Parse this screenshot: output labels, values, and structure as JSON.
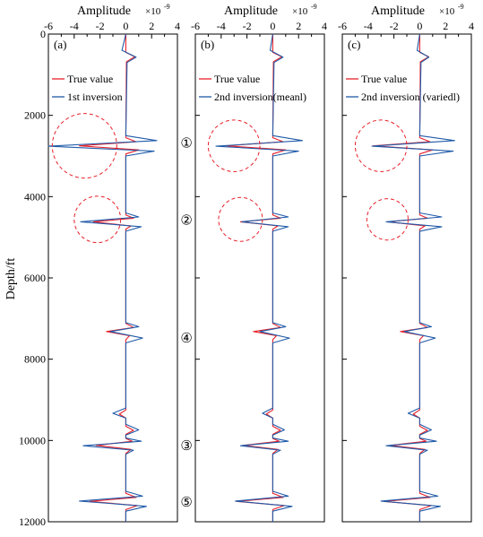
{
  "figure": {
    "ylabel": "Depth/ft",
    "xlabel": "Amplitude",
    "x_exponent_base": "×10",
    "x_exponent_power": "-9"
  },
  "colors": {
    "true_value": "#e8202a",
    "inversion": "#1f5aa8",
    "circle": "#e8202a"
  },
  "chart_data": [
    {
      "type": "line",
      "panel_label": "(a)",
      "xlim": [
        -6,
        4
      ],
      "ylim": [
        12000,
        0
      ],
      "x_ticks": [
        -6,
        -4,
        -2,
        0,
        2,
        4
      ],
      "y_ticks": [
        0,
        2000,
        4000,
        6000,
        8000,
        10000,
        12000
      ],
      "legend_position": "top-left",
      "series": [
        {
          "name": "True value",
          "points": [
            [
              0,
              0
            ],
            [
              0,
              450
            ],
            [
              0.7,
              560
            ],
            [
              0.05,
              680
            ],
            [
              0,
              2550
            ],
            [
              0.8,
              2650
            ],
            [
              -3.6,
              2750
            ],
            [
              1,
              2850
            ],
            [
              0,
              2950
            ],
            [
              0,
              4450
            ],
            [
              0.6,
              4530
            ],
            [
              -2.5,
              4620
            ],
            [
              0.4,
              4720
            ],
            [
              0,
              4800
            ],
            [
              0,
              7120
            ],
            [
              0.6,
              7220
            ],
            [
              -1.5,
              7320
            ],
            [
              0.3,
              7420
            ],
            [
              0,
              7520
            ],
            [
              0,
              9250
            ],
            [
              -0.5,
              9350
            ],
            [
              0,
              9450
            ],
            [
              0,
              9650
            ],
            [
              0.6,
              9750
            ],
            [
              0,
              9850
            ],
            [
              0,
              9950
            ],
            [
              0.5,
              10020
            ],
            [
              -2.3,
              10120
            ],
            [
              0.4,
              10220
            ],
            [
              0,
              10320
            ],
            [
              0,
              11300
            ],
            [
              0.8,
              11400
            ],
            [
              -2.8,
              11500
            ],
            [
              0.9,
              11600
            ],
            [
              0,
              11700
            ],
            [
              0,
              12000
            ]
          ]
        },
        {
          "name": "1st inversion",
          "points": [
            [
              0,
              0
            ],
            [
              -0.3,
              400
            ],
            [
              0.8,
              570
            ],
            [
              0.1,
              700
            ],
            [
              0,
              2500
            ],
            [
              2.4,
              2620
            ],
            [
              -6,
              2760
            ],
            [
              2.2,
              2880
            ],
            [
              0,
              3000
            ],
            [
              0,
              4400
            ],
            [
              1.0,
              4500
            ],
            [
              -3.5,
              4620
            ],
            [
              1.2,
              4740
            ],
            [
              0,
              4850
            ],
            [
              0,
              7100
            ],
            [
              1.0,
              7200
            ],
            [
              -1.2,
              7320
            ],
            [
              1.3,
              7480
            ],
            [
              0,
              7600
            ],
            [
              0,
              9200
            ],
            [
              -1.0,
              9330
            ],
            [
              0,
              9450
            ],
            [
              0,
              9600
            ],
            [
              1.0,
              9740
            ],
            [
              0,
              9870
            ],
            [
              0,
              9940
            ],
            [
              1.2,
              10020
            ],
            [
              -3.3,
              10130
            ],
            [
              0.6,
              10240
            ],
            [
              0,
              10340
            ],
            [
              0,
              11250
            ],
            [
              1.3,
              11370
            ],
            [
              -3.6,
              11490
            ],
            [
              1.6,
              11620
            ],
            [
              0,
              11740
            ],
            [
              0,
              12000
            ]
          ]
        }
      ],
      "circles": [
        {
          "x": -3.2,
          "y": 2750,
          "r": 2.5
        },
        {
          "x": -2.2,
          "y": 4560,
          "r": 1.8
        }
      ],
      "markers": [
        {
          "text": "①",
          "x": 4.7,
          "y": 2680
        },
        {
          "text": "②",
          "x": 4.7,
          "y": 4580
        },
        {
          "text": "④",
          "x": 4.7,
          "y": 7480
        },
        {
          "text": "③",
          "x": 4.7,
          "y": 10130
        },
        {
          "text": "⑤",
          "x": 4.7,
          "y": 11520
        }
      ]
    },
    {
      "type": "line",
      "panel_label": "(b)",
      "xlim": [
        -6,
        4
      ],
      "ylim": [
        12000,
        0
      ],
      "x_ticks": [
        -6,
        -4,
        -2,
        0,
        2,
        4
      ],
      "y_ticks": [
        0,
        2000,
        4000,
        6000,
        8000,
        10000,
        12000
      ],
      "legend_position": "top-left",
      "series": [
        {
          "name": "True value",
          "points": [
            [
              0,
              0
            ],
            [
              0,
              450
            ],
            [
              0.7,
              560
            ],
            [
              0.05,
              680
            ],
            [
              0,
              2550
            ],
            [
              0.8,
              2650
            ],
            [
              -3.6,
              2750
            ],
            [
              1,
              2850
            ],
            [
              0,
              2950
            ],
            [
              0,
              4450
            ],
            [
              0.6,
              4530
            ],
            [
              -2.5,
              4620
            ],
            [
              0.4,
              4720
            ],
            [
              0,
              4800
            ],
            [
              0,
              7120
            ],
            [
              0.6,
              7220
            ],
            [
              -1.5,
              7320
            ],
            [
              0.3,
              7420
            ],
            [
              0,
              7520
            ],
            [
              0,
              9250
            ],
            [
              -0.5,
              9350
            ],
            [
              0,
              9450
            ],
            [
              0,
              9650
            ],
            [
              0.6,
              9750
            ],
            [
              0,
              9850
            ],
            [
              0,
              9950
            ],
            [
              0.5,
              10020
            ],
            [
              -2.3,
              10120
            ],
            [
              0.4,
              10220
            ],
            [
              0,
              10320
            ],
            [
              0,
              11300
            ],
            [
              0.8,
              11400
            ],
            [
              -2.8,
              11500
            ],
            [
              0.9,
              11600
            ],
            [
              0,
              11700
            ],
            [
              0,
              12000
            ]
          ]
        },
        {
          "name": "2nd inversion(meanl)",
          "points": [
            [
              0,
              0
            ],
            [
              -0.2,
              400
            ],
            [
              0.8,
              570
            ],
            [
              0.1,
              700
            ],
            [
              0,
              2500
            ],
            [
              2.3,
              2620
            ],
            [
              -4.4,
              2760
            ],
            [
              2.0,
              2880
            ],
            [
              0,
              3000
            ],
            [
              0,
              4400
            ],
            [
              1.2,
              4500
            ],
            [
              -2.4,
              4620
            ],
            [
              1.2,
              4740
            ],
            [
              0,
              4850
            ],
            [
              0,
              7100
            ],
            [
              1.0,
              7200
            ],
            [
              -1.0,
              7320
            ],
            [
              1.3,
              7480
            ],
            [
              0,
              7600
            ],
            [
              0,
              9200
            ],
            [
              -0.8,
              9330
            ],
            [
              0,
              9450
            ],
            [
              0,
              9600
            ],
            [
              0.9,
              9740
            ],
            [
              0,
              9870
            ],
            [
              0,
              9940
            ],
            [
              1.2,
              10020
            ],
            [
              -2.5,
              10130
            ],
            [
              0.6,
              10240
            ],
            [
              0,
              10340
            ],
            [
              0,
              11250
            ],
            [
              1.2,
              11370
            ],
            [
              -2.9,
              11490
            ],
            [
              1.5,
              11620
            ],
            [
              0,
              11740
            ],
            [
              0,
              12000
            ]
          ]
        }
      ],
      "circles": [
        {
          "x": -3.0,
          "y": 2750,
          "r": 2.0
        },
        {
          "x": -2.5,
          "y": 4560,
          "r": 1.7
        }
      ],
      "markers": []
    },
    {
      "type": "line",
      "panel_label": "(c)",
      "xlim": [
        -6,
        4
      ],
      "ylim": [
        12000,
        0
      ],
      "x_ticks": [
        -6,
        -4,
        -2,
        0,
        2,
        4
      ],
      "y_ticks": [
        0,
        2000,
        4000,
        6000,
        8000,
        10000,
        12000
      ],
      "legend_position": "top-left",
      "series": [
        {
          "name": "True value",
          "points": [
            [
              0,
              0
            ],
            [
              0,
              450
            ],
            [
              0.7,
              560
            ],
            [
              0.05,
              680
            ],
            [
              0,
              2550
            ],
            [
              0.8,
              2650
            ],
            [
              -3.6,
              2750
            ],
            [
              1,
              2850
            ],
            [
              0,
              2950
            ],
            [
              0,
              4450
            ],
            [
              0.6,
              4530
            ],
            [
              -2.5,
              4620
            ],
            [
              0.4,
              4720
            ],
            [
              0,
              4800
            ],
            [
              0,
              7120
            ],
            [
              0.6,
              7220
            ],
            [
              -1.5,
              7320
            ],
            [
              0.3,
              7420
            ],
            [
              0,
              7520
            ],
            [
              0,
              9250
            ],
            [
              -0.5,
              9350
            ],
            [
              0,
              9450
            ],
            [
              0,
              9650
            ],
            [
              0.6,
              9750
            ],
            [
              0,
              9850
            ],
            [
              0,
              9950
            ],
            [
              0.5,
              10020
            ],
            [
              -2.3,
              10120
            ],
            [
              0.4,
              10220
            ],
            [
              0,
              10320
            ],
            [
              0,
              11300
            ],
            [
              0.8,
              11400
            ],
            [
              -2.8,
              11500
            ],
            [
              0.9,
              11600
            ],
            [
              0,
              11700
            ],
            [
              0,
              12000
            ]
          ]
        },
        {
          "name": "2nd inversion (variedl)",
          "points": [
            [
              0,
              0
            ],
            [
              -0.2,
              400
            ],
            [
              0.7,
              570
            ],
            [
              0.1,
              700
            ],
            [
              0,
              2500
            ],
            [
              2.7,
              2620
            ],
            [
              -3.7,
              2760
            ],
            [
              2.6,
              2880
            ],
            [
              0,
              3000
            ],
            [
              0,
              4400
            ],
            [
              1.7,
              4500
            ],
            [
              -2.6,
              4620
            ],
            [
              1.7,
              4740
            ],
            [
              0,
              4850
            ],
            [
              0,
              7100
            ],
            [
              0.9,
              7200
            ],
            [
              -1.2,
              7320
            ],
            [
              1.2,
              7480
            ],
            [
              0,
              7600
            ],
            [
              0,
              9200
            ],
            [
              -0.9,
              9330
            ],
            [
              0,
              9450
            ],
            [
              0,
              9600
            ],
            [
              0.9,
              9740
            ],
            [
              0,
              9870
            ],
            [
              0,
              9940
            ],
            [
              1.3,
              10020
            ],
            [
              -2.6,
              10130
            ],
            [
              0.6,
              10240
            ],
            [
              0,
              10340
            ],
            [
              0,
              11250
            ],
            [
              1.4,
              11370
            ],
            [
              -3.0,
              11490
            ],
            [
              1.6,
              11620
            ],
            [
              0,
              11740
            ],
            [
              0,
              12000
            ]
          ]
        }
      ],
      "circles": [
        {
          "x": -3.0,
          "y": 2750,
          "r": 2.0
        },
        {
          "x": -2.5,
          "y": 4560,
          "r": 1.6
        }
      ],
      "markers": []
    }
  ]
}
